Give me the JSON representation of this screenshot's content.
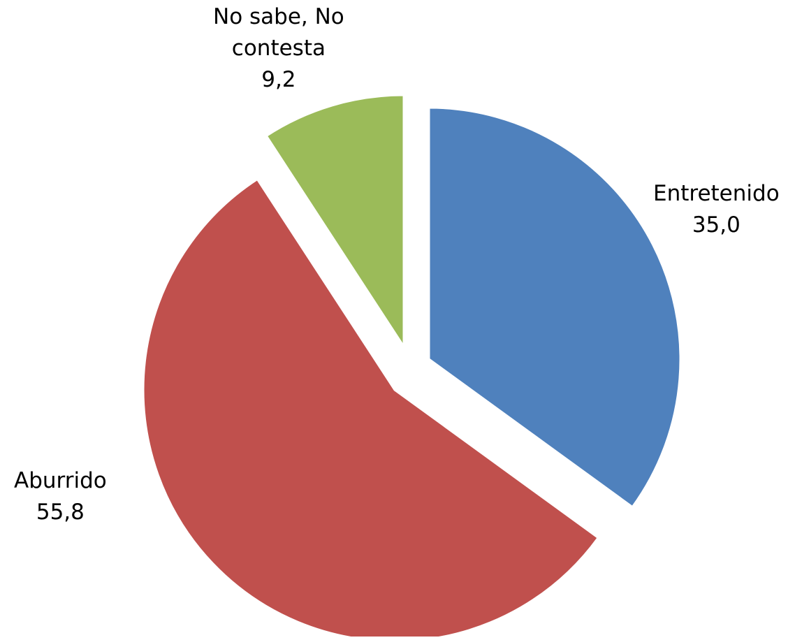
{
  "chart_data": {
    "type": "pie",
    "title": "",
    "start_angle_deg": 0,
    "direction": "clockwise",
    "exploded": true,
    "slices": [
      {
        "label": "Entretenido",
        "value": 35.0,
        "value_text": "35,0",
        "color": "#4F81BD"
      },
      {
        "label": "Aburrido",
        "value": 55.8,
        "value_text": "55,8",
        "color": "#C0504D"
      },
      {
        "label": "No sabe, No contesta",
        "value": 9.2,
        "value_text": "9,2",
        "color": "#9BBB59"
      }
    ],
    "data_labels": [
      {
        "lines": [
          "Entretenido",
          "35,0"
        ]
      },
      {
        "lines": [
          "Aburrido",
          "55,8"
        ]
      },
      {
        "lines": [
          "No sabe, No",
          "contesta",
          "9,2"
        ]
      }
    ]
  }
}
